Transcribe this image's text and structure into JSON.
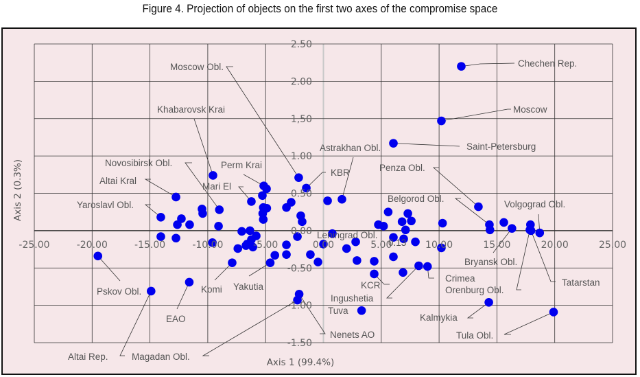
{
  "chart_data": {
    "type": "scatter",
    "title": "Figure 4. Projection of objects on the first two axes of the compromise space",
    "xlabel": "Axis 1 (99.4%)",
    "ylabel": "Axis 2 (0.3%)",
    "xlim": [
      -25,
      25
    ],
    "ylim": [
      -1.5,
      2.5
    ],
    "xticks": [
      "-25.00",
      "-20.00",
      "-15.00",
      "-10.00",
      "-5.00",
      "0.00",
      "5.00",
      "10.00",
      "15.00",
      "20.00",
      "25.00"
    ],
    "yticks": [
      "2.50",
      "2.00",
      "1,50",
      "1.00",
      "0.50",
      "0.00",
      "-0.50",
      "-1.00",
      "-1.50"
    ],
    "grid": true,
    "marker_color": "#0000ee",
    "stray_annotation": "0.13",
    "points": [
      {
        "x": 11.92,
        "y": 2.2,
        "label": "Chechen Rep."
      },
      {
        "x": 10.2,
        "y": 1.47,
        "label": "Moscow"
      },
      {
        "x": 6.05,
        "y": 1.17,
        "label": "Saint-Petersburg"
      },
      {
        "x": -9.55,
        "y": 0.74,
        "label": "Khabarovsk Krai"
      },
      {
        "x": -2.14,
        "y": 0.71,
        "label": "Moscow Obl."
      },
      {
        "x": -1.48,
        "y": 0.57,
        "label": "KBR"
      },
      {
        "x": 1.6,
        "y": 0.42,
        "label": "Astrakhan Obl."
      },
      {
        "x": 0.36,
        "y": 0.4
      },
      {
        "x": -5.16,
        "y": 0.6,
        "label": "Perm Krai"
      },
      {
        "x": -4.92,
        "y": 0.56
      },
      {
        "x": -5.28,
        "y": 0.47
      },
      {
        "x": -6.23,
        "y": 0.39,
        "label": "Mari El"
      },
      {
        "x": -12.75,
        "y": 0.45,
        "label": "Altai Kral"
      },
      {
        "x": -9.0,
        "y": 0.28,
        "label": "Novosibirsk Obl."
      },
      {
        "x": -10.5,
        "y": 0.29
      },
      {
        "x": -10.44,
        "y": 0.23
      },
      {
        "x": -14.06,
        "y": 0.18,
        "label": "Yaroslavl Obl."
      },
      {
        "x": -12.28,
        "y": 0.16
      },
      {
        "x": -12.63,
        "y": 0.08
      },
      {
        "x": -11.57,
        "y": 0.08
      },
      {
        "x": -9.07,
        "y": 0.06
      },
      {
        "x": -5.2,
        "y": 0.31
      },
      {
        "x": -4.9,
        "y": 0.3
      },
      {
        "x": -5.25,
        "y": 0.23
      },
      {
        "x": -5.2,
        "y": 0.15
      },
      {
        "x": -3.2,
        "y": 0.31
      },
      {
        "x": -2.79,
        "y": 0.38
      },
      {
        "x": -1.96,
        "y": 0.2
      },
      {
        "x": -1.84,
        "y": 0.12
      },
      {
        "x": -14.06,
        "y": -0.08
      },
      {
        "x": -12.75,
        "y": -0.1
      },
      {
        "x": -9.6,
        "y": -0.16
      },
      {
        "x": -7.06,
        "y": -0.01
      },
      {
        "x": -6.35,
        "y": 0.0
      },
      {
        "x": -5.81,
        "y": -0.07
      },
      {
        "x": -6.23,
        "y": -0.12
      },
      {
        "x": -6.6,
        "y": -0.18
      },
      {
        "x": -6.1,
        "y": -0.22
      },
      {
        "x": -6.7,
        "y": -0.2
      },
      {
        "x": -7.4,
        "y": -0.24
      },
      {
        "x": -7.89,
        "y": -0.43,
        "label": "Komi"
      },
      {
        "x": -4.6,
        "y": -0.43,
        "label": "Yakutia"
      },
      {
        "x": -4.2,
        "y": -0.33
      },
      {
        "x": -3.2,
        "y": -0.19
      },
      {
        "x": -3.2,
        "y": -0.32
      },
      {
        "x": -2.25,
        "y": -0.08
      },
      {
        "x": -1.13,
        "y": -0.32
      },
      {
        "x": -0.47,
        "y": -0.42
      },
      {
        "x": 0.0,
        "y": -0.18
      },
      {
        "x": 0.77,
        "y": -0.04
      },
      {
        "x": 2.0,
        "y": -0.24
      },
      {
        "x": 2.79,
        "y": -0.15
      },
      {
        "x": 2.9,
        "y": -0.4
      },
      {
        "x": 4.39,
        "y": -0.41
      },
      {
        "x": 4.39,
        "y": -0.58,
        "label": "KCR"
      },
      {
        "x": 6.88,
        "y": -0.56
      },
      {
        "x": 8.24,
        "y": -0.47,
        "label": "Ingushetia"
      },
      {
        "x": 9.0,
        "y": -0.48,
        "label": "Crimea"
      },
      {
        "x": 6.05,
        "y": -0.35
      },
      {
        "x": 6.05,
        "y": -0.09
      },
      {
        "x": 6.94,
        "y": -0.11
      },
      {
        "x": 7.95,
        "y": -0.15
      },
      {
        "x": 7.1,
        "y": 0.01
      },
      {
        "x": 6.8,
        "y": 0.12
      },
      {
        "x": 7.6,
        "y": 0.13
      },
      {
        "x": 7.3,
        "y": 0.23
      },
      {
        "x": 5.6,
        "y": 0.25
      },
      {
        "x": 4.75,
        "y": 0.08,
        "label": "Leningrad Obl."
      },
      {
        "x": 5.2,
        "y": 0.06
      },
      {
        "x": 10.3,
        "y": 0.1
      },
      {
        "x": 10.2,
        "y": -0.23
      },
      {
        "x": 13.4,
        "y": 0.32,
        "label": "Penza Obl."
      },
      {
        "x": 14.35,
        "y": 0.08,
        "label": "Belgorod Obl."
      },
      {
        "x": 14.4,
        "y": 0.01
      },
      {
        "x": 15.6,
        "y": 0.11
      },
      {
        "x": 16.3,
        "y": 0.03,
        "label": "Bryansk Obl."
      },
      {
        "x": 17.9,
        "y": 0.08
      },
      {
        "x": 17.85,
        "y": 0.01,
        "label": "Orenburg Obl."
      },
      {
        "x": 18.7,
        "y": -0.03,
        "label": "Volgograd Obl."
      },
      {
        "x": 17.95,
        "y": 0.0,
        "label": "Tatarstan"
      },
      {
        "x": 14.3,
        "y": -0.96,
        "label": "Kalmykia"
      },
      {
        "x": 19.9,
        "y": -1.09,
        "label": "Tula Obl."
      },
      {
        "x": 3.3,
        "y": -1.07,
        "label": "Tuva"
      },
      {
        "x": -2.1,
        "y": -0.85,
        "label": "Nenets AO"
      },
      {
        "x": -2.25,
        "y": -0.93,
        "label": "Magadan Obl."
      },
      {
        "x": -19.5,
        "y": -0.34,
        "label": "Pskov Obl."
      },
      {
        "x": -14.9,
        "y": -0.81,
        "label": "Altai Rep."
      },
      {
        "x": -11.6,
        "y": -0.69,
        "label": "EAO"
      }
    ]
  }
}
